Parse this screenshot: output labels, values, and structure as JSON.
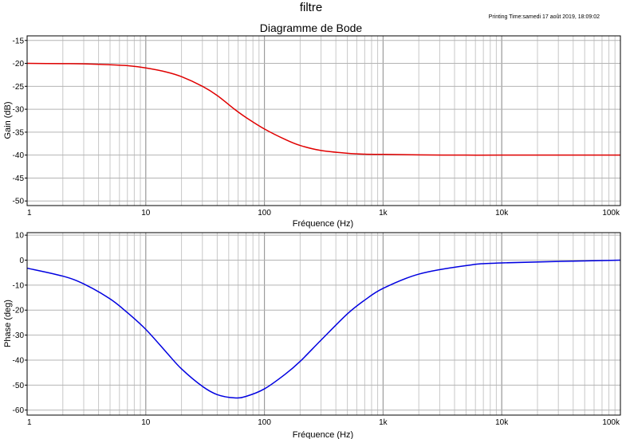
{
  "window": {
    "title": "filtre",
    "printing_time": "Printing Time:samedi 17 août 2019, 18:09:02"
  },
  "chart_data": [
    {
      "type": "line",
      "title": "Diagramme de Bode",
      "xlabel": "Fréquence (Hz)",
      "ylabel": "Gain (dB)",
      "x_scale": "log",
      "xlim": [
        1,
        100000
      ],
      "ylim": [
        -51,
        -14
      ],
      "grid": true,
      "x_ticks": [
        1,
        10,
        100,
        1000,
        10000,
        100000
      ],
      "x_tick_labels": [
        "1",
        "10",
        "100",
        "1k",
        "10k",
        "100k"
      ],
      "y_ticks": [
        -15,
        -20,
        -25,
        -30,
        -35,
        -40,
        -45,
        -50
      ],
      "y_tick_labels": [
        "-15",
        "-20",
        "-25",
        "-30",
        "-35",
        "-40",
        "-45",
        "-50"
      ],
      "series": [
        {
          "color": "#e00000",
          "x": [
            1,
            2,
            3,
            5,
            7,
            10,
            15,
            20,
            30,
            40,
            56,
            70,
            100,
            150,
            200,
            300,
            500,
            700,
            1000,
            2000,
            5000,
            10000,
            100000
          ],
          "y": [
            -20.0,
            -20.05,
            -20.1,
            -20.3,
            -20.5,
            -21.0,
            -21.9,
            -22.9,
            -25.0,
            -27.0,
            -30.0,
            -31.8,
            -34.3,
            -36.6,
            -37.9,
            -39.0,
            -39.6,
            -39.8,
            -39.85,
            -39.95,
            -40.0,
            -40.0,
            -40.0
          ]
        }
      ]
    },
    {
      "type": "line",
      "title": "",
      "xlabel": "Fréquence (Hz)",
      "ylabel": "Phase (deg)",
      "x_scale": "log",
      "xlim": [
        1,
        100000
      ],
      "ylim": [
        -62,
        11
      ],
      "grid": true,
      "x_ticks": [
        1,
        10,
        100,
        1000,
        10000,
        100000
      ],
      "x_tick_labels": [
        "1",
        "10",
        "100",
        "1k",
        "10k",
        "100k"
      ],
      "y_ticks": [
        10,
        0,
        -10,
        -20,
        -30,
        -40,
        -50,
        -60
      ],
      "y_tick_labels": [
        "10",
        "0",
        "-10",
        "-20",
        "-30",
        "-40",
        "-50",
        "-60"
      ],
      "series": [
        {
          "color": "#0000e0",
          "x": [
            1,
            2,
            3,
            5,
            7,
            10,
            15,
            20,
            30,
            40,
            56,
            70,
            100,
            150,
            200,
            300,
            500,
            700,
            1000,
            2000,
            5000,
            10000,
            100000
          ],
          "y": [
            -3.2,
            -6.4,
            -9.5,
            -15.5,
            -21.0,
            -27.7,
            -37.0,
            -43.5,
            -50.5,
            -53.8,
            -55.1,
            -54.5,
            -51.5,
            -45.6,
            -40.5,
            -32.0,
            -21.5,
            -16.0,
            -11.3,
            -5.6,
            -2.2,
            -1.1,
            0.0
          ]
        }
      ]
    }
  ]
}
